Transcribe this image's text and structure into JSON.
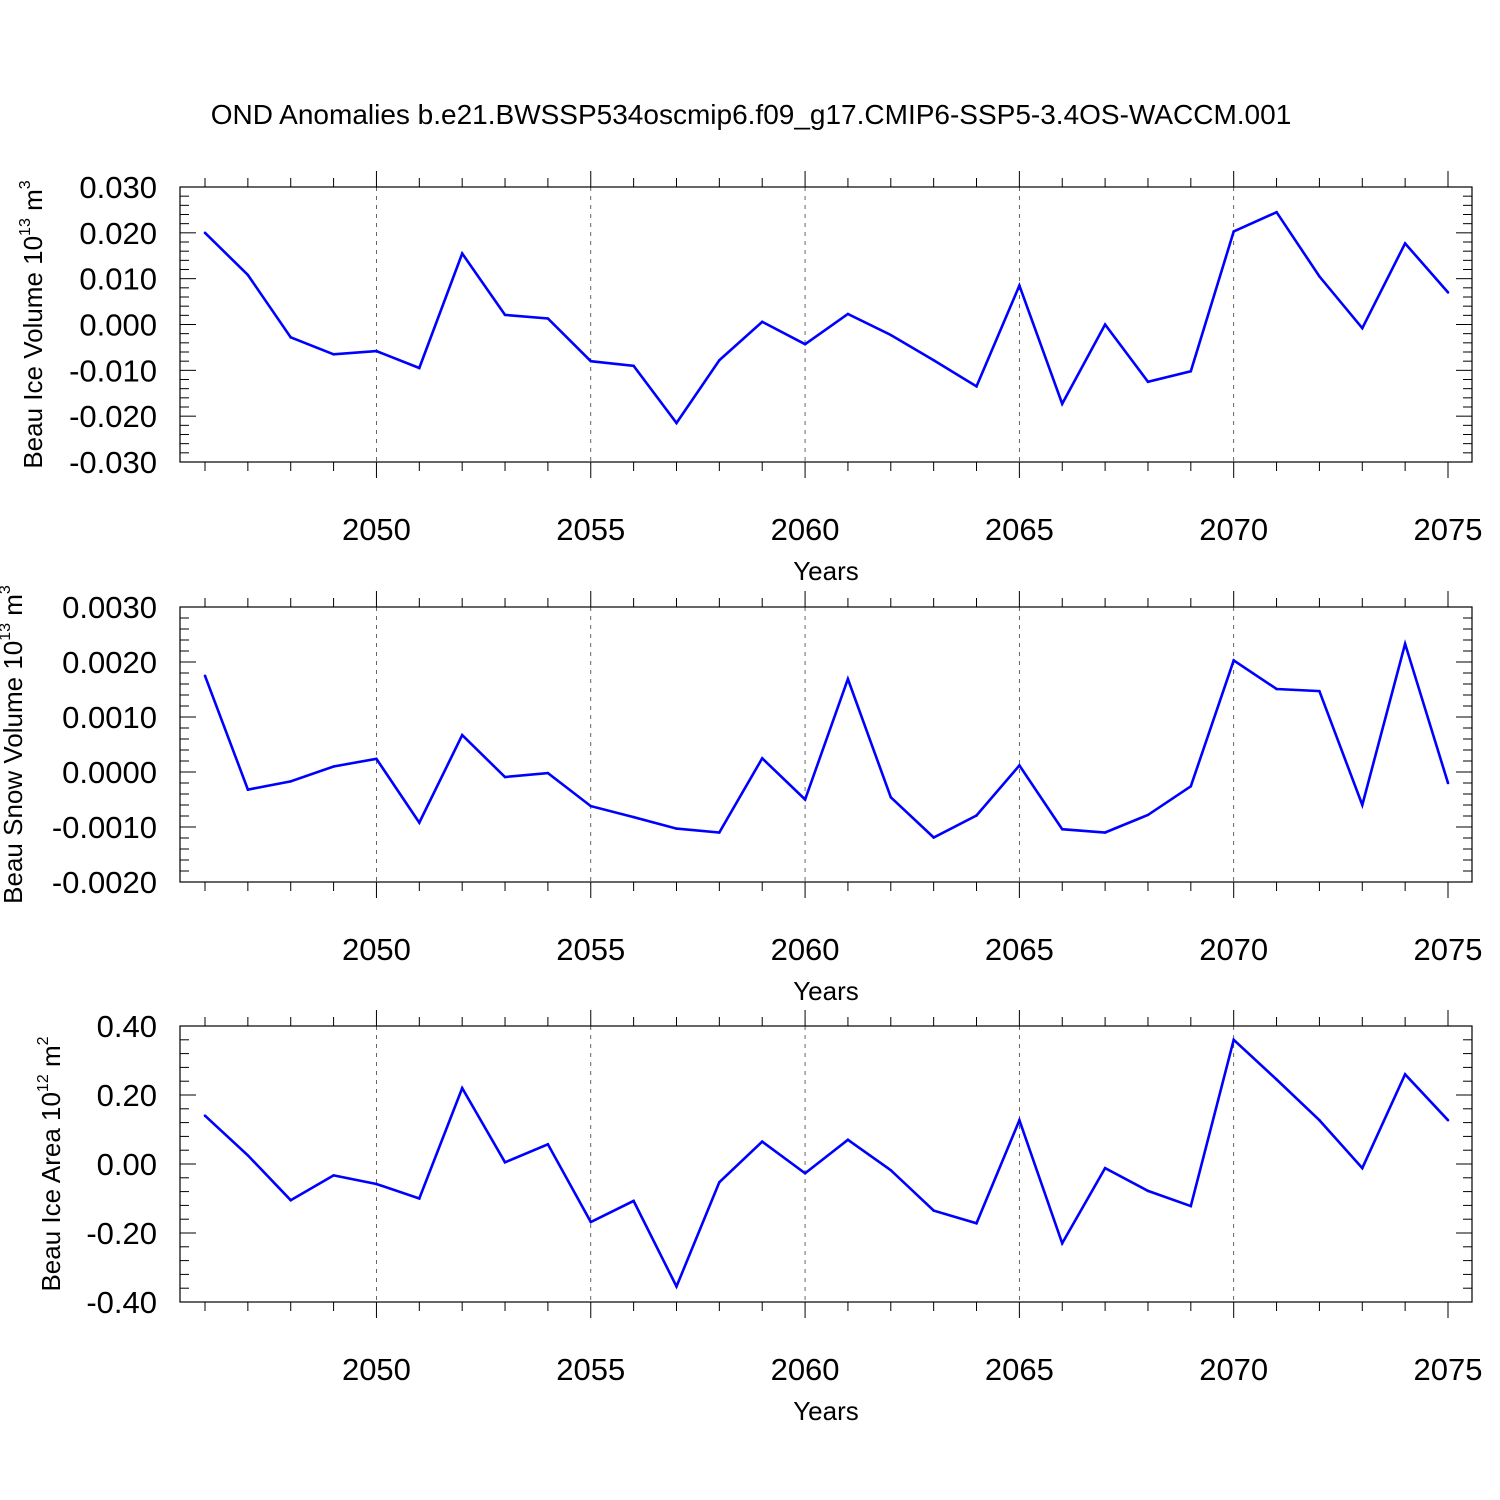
{
  "title": "OND Anomalies b.e21.BWSSP534oscmip6.f09_g17.CMIP6-SSP5-3.4OS-WACCM.001",
  "colors": {
    "line": "#0000ff",
    "axes": "#000000",
    "grid": "#000000"
  },
  "chart_data": [
    {
      "type": "line",
      "ylabel": {
        "prefix": "Beau Ice Volume 10",
        "exp": "13",
        "unit": " m",
        "unit_exp": "3"
      },
      "xlabel": "Years",
      "xlim": [
        2046,
        2075
      ],
      "ylim": [
        -0.03,
        0.03
      ],
      "yticks": [
        "0.030",
        "0.020",
        "0.010",
        "0.000",
        "-0.010",
        "-0.020",
        "-0.030"
      ],
      "ytick_values": [
        0.03,
        0.02,
        0.01,
        0.0,
        -0.01,
        -0.02,
        -0.03
      ],
      "xticks": [
        "2050",
        "2055",
        "2060",
        "2065",
        "2070",
        "2075"
      ],
      "xtick_values": [
        2050,
        2055,
        2060,
        2065,
        2070,
        2075
      ],
      "grid": "vertical dashed at major x ticks",
      "x": [
        2046,
        2047,
        2048,
        2049,
        2050,
        2051,
        2052,
        2053,
        2054,
        2055,
        2056,
        2057,
        2058,
        2059,
        2060,
        2061,
        2062,
        2063,
        2064,
        2065,
        2066,
        2067,
        2068,
        2069,
        2070,
        2071,
        2072,
        2073,
        2074,
        2075
      ],
      "y": [
        0.02,
        0.0108,
        -0.0028,
        -0.0065,
        -0.0058,
        -0.0095,
        0.0155,
        0.0021,
        0.0013,
        -0.008,
        -0.009,
        -0.0215,
        -0.0078,
        0.0006,
        -0.0043,
        0.0023,
        -0.0023,
        -0.0078,
        -0.0135,
        0.0085,
        -0.0173,
        0.0,
        -0.0125,
        -0.0102,
        0.0203,
        0.0245,
        0.0105,
        -0.0008,
        0.0177,
        0.007
      ]
    },
    {
      "type": "line",
      "ylabel": {
        "prefix": "Beau Snow Volume 10",
        "exp": "13",
        "unit": " m",
        "unit_exp": "3"
      },
      "xlabel": "Years",
      "xlim": [
        2046,
        2075
      ],
      "ylim": [
        -0.002,
        0.003
      ],
      "yticks": [
        "0.0030",
        "0.0020",
        "0.0010",
        "0.0000",
        "-0.0010",
        "-0.0020"
      ],
      "ytick_values": [
        0.003,
        0.002,
        0.001,
        0.0,
        -0.001,
        -0.002
      ],
      "xticks": [
        "2050",
        "2055",
        "2060",
        "2065",
        "2070",
        "2075"
      ],
      "xtick_values": [
        2050,
        2055,
        2060,
        2065,
        2070,
        2075
      ],
      "grid": "vertical dashed at major x ticks",
      "x": [
        2046,
        2047,
        2048,
        2049,
        2050,
        2051,
        2052,
        2053,
        2054,
        2055,
        2056,
        2057,
        2058,
        2059,
        2060,
        2061,
        2062,
        2063,
        2064,
        2065,
        2066,
        2067,
        2068,
        2069,
        2070,
        2071,
        2072,
        2073,
        2074,
        2075
      ],
      "y": [
        0.00175,
        -0.00032,
        -0.00017,
        0.0001,
        0.00024,
        -0.00092,
        0.00067,
        -9e-05,
        -2e-05,
        -0.00062,
        -0.00082,
        -0.00103,
        -0.0011,
        0.00025,
        -0.0005,
        0.00169,
        -0.00046,
        -0.00119,
        -0.00079,
        0.00012,
        -0.00104,
        -0.0011,
        -0.00078,
        -0.00026,
        0.00203,
        0.00151,
        0.00147,
        -0.0006,
        0.00233,
        -0.0002
      ]
    },
    {
      "type": "line",
      "ylabel": {
        "prefix": "Beau Ice Area 10",
        "exp": "12",
        "unit": " m",
        "unit_exp": "2"
      },
      "xlabel": "Years",
      "xlim": [
        2046,
        2075
      ],
      "ylim": [
        -0.4,
        0.4
      ],
      "yticks": [
        "0.40",
        "0.20",
        "0.00",
        "-0.20",
        "-0.40"
      ],
      "ytick_values": [
        0.4,
        0.2,
        0.0,
        -0.2,
        -0.4
      ],
      "xticks": [
        "2050",
        "2055",
        "2060",
        "2065",
        "2070",
        "2075"
      ],
      "xtick_values": [
        2050,
        2055,
        2060,
        2065,
        2070,
        2075
      ],
      "grid": "vertical dashed at major x ticks",
      "x": [
        2046,
        2047,
        2048,
        2049,
        2050,
        2051,
        2052,
        2053,
        2054,
        2055,
        2056,
        2057,
        2058,
        2059,
        2060,
        2061,
        2062,
        2063,
        2064,
        2065,
        2066,
        2067,
        2068,
        2069,
        2070,
        2071,
        2072,
        2073,
        2074,
        2075
      ],
      "y": [
        0.14,
        0.025,
        -0.105,
        -0.033,
        -0.058,
        -0.1,
        0.22,
        0.005,
        0.057,
        -0.168,
        -0.107,
        -0.355,
        -0.053,
        0.065,
        -0.027,
        0.07,
        -0.018,
        -0.135,
        -0.172,
        0.127,
        -0.23,
        -0.012,
        -0.078,
        -0.122,
        0.36,
        0.245,
        0.127,
        -0.012,
        0.26,
        0.127
      ]
    }
  ]
}
